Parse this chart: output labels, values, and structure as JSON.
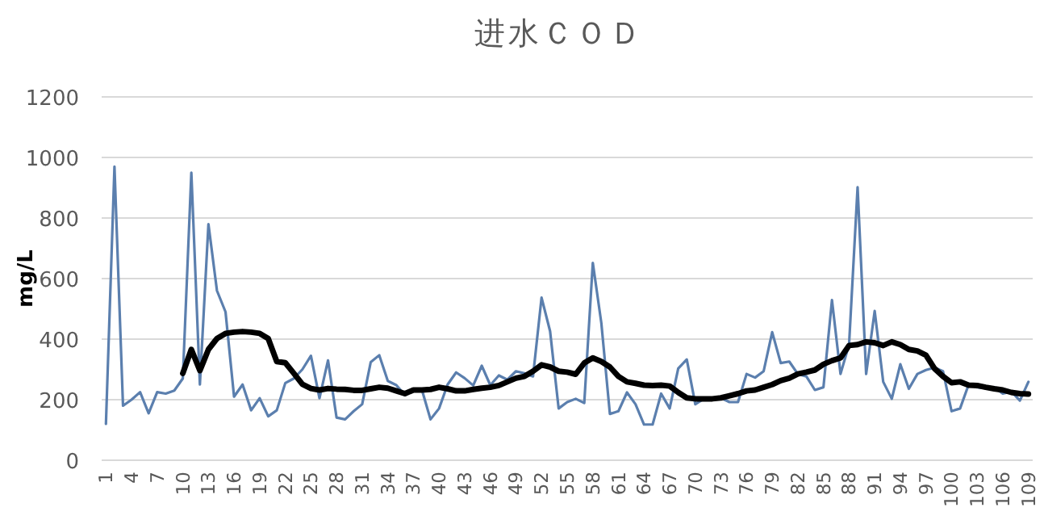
{
  "chart_data": {
    "type": "line",
    "title": "进水ＣＯＤ",
    "ylabel": "mg/L",
    "categories": [
      "1",
      null,
      null,
      "4",
      null,
      null,
      "7",
      null,
      null,
      "10",
      null,
      null,
      "13",
      null,
      null,
      "16",
      null,
      null,
      "19",
      null,
      null,
      "22",
      null,
      null,
      "25",
      null,
      null,
      "28",
      null,
      null,
      "31",
      null,
      null,
      "34",
      null,
      null,
      "37",
      null,
      null,
      "40",
      null,
      null,
      "43",
      null,
      null,
      "46",
      null,
      null,
      "49",
      null,
      null,
      "52",
      null,
      null,
      "55",
      null,
      null,
      "58",
      null,
      null,
      "61",
      null,
      null,
      "64",
      null,
      null,
      "67",
      null,
      null,
      "70",
      null,
      null,
      "73",
      null,
      null,
      "76",
      null,
      null,
      "79",
      null,
      null,
      "82",
      null,
      null,
      "85",
      null,
      null,
      "88",
      null,
      null,
      "91",
      null,
      null,
      "94",
      null,
      null,
      "97",
      null,
      null,
      "100",
      null,
      null,
      "103",
      null,
      null,
      "106",
      null,
      null,
      "109"
    ],
    "series": [
      {
        "color": "#5b7fae",
        "values": [
          120,
          970,
          180,
          200,
          225,
          155,
          225,
          220,
          230,
          270,
          950,
          250,
          780,
          560,
          490,
          210,
          250,
          165,
          205,
          145,
          165,
          255,
          270,
          300,
          345,
          205,
          330,
          141,
          135,
          162,
          185,
          324,
          347,
          262,
          248,
          215,
          232,
          232,
          135,
          171,
          250,
          290,
          271,
          247,
          312,
          248,
          280,
          266,
          294,
          287,
          277,
          537,
          426,
          171,
          192,
          203,
          189,
          652,
          453,
          153,
          162,
          224,
          185,
          118,
          118,
          220,
          171,
          303,
          333,
          185,
          203,
          203,
          206,
          192,
          192,
          285,
          273,
          294,
          423,
          321,
          326,
          285,
          277,
          232,
          241,
          529,
          285,
          382,
          902,
          285,
          493,
          259,
          203,
          317,
          236,
          285,
          298,
          306,
          294,
          162,
          171,
          250,
          241,
          238,
          241,
          220,
          227,
          197,
          259
        ]
      },
      {
        "color": "#000000",
        "values": [
          null,
          null,
          null,
          null,
          null,
          null,
          null,
          null,
          null,
          287,
          366,
          296,
          366,
          402,
          419,
          423,
          425,
          423,
          419,
          402,
          326,
          322,
          287,
          251,
          237,
          232,
          237,
          235,
          234,
          231,
          231,
          236,
          241,
          238,
          229,
          220,
          232,
          232,
          234,
          241,
          236,
          229,
          229,
          234,
          238,
          241,
          247,
          259,
          271,
          277,
          294,
          315,
          308,
          294,
          291,
          284,
          321,
          338,
          326,
          308,
          277,
          259,
          254,
          248,
          247,
          248,
          245,
          224,
          206,
          203,
          203,
          203,
          206,
          213,
          220,
          229,
          232,
          241,
          250,
          263,
          271,
          285,
          291,
          298,
          317,
          329,
          338,
          379,
          382,
          391,
          388,
          379,
          391,
          382,
          366,
          361,
          347,
          303,
          277,
          256,
          259,
          248,
          247,
          241,
          236,
          232,
          224,
          220,
          219
        ]
      }
    ],
    "ylim": [
      0,
      1200
    ],
    "yticks": [
      0,
      200,
      400,
      600,
      800,
      1000,
      1200
    ],
    "grid": "y"
  }
}
